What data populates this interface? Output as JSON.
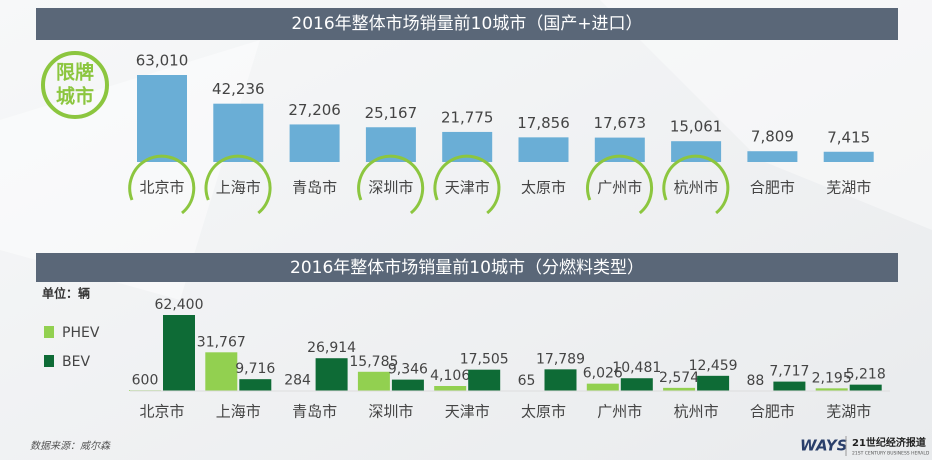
{
  "chart_data": [
    {
      "type": "bar",
      "title": "2016年整体市场销量前10城市（国产+进口）",
      "annotation": [
        "限牌",
        "城市"
      ],
      "categories": [
        "北京市",
        "上海市",
        "青岛市",
        "深圳市",
        "天津市",
        "太原市",
        "广州市",
        "杭州市",
        "合肥市",
        "芜湖市"
      ],
      "values": [
        63010,
        42236,
        27206,
        25167,
        21775,
        17856,
        17673,
        15061,
        7809,
        7415
      ],
      "value_labels": [
        "63,010",
        "42,236",
        "27,206",
        "25,167",
        "21,775",
        "17,856",
        "17,673",
        "15,061",
        "7,809",
        "7,415"
      ],
      "color": "#6aaed6",
      "highlighted": [
        true,
        true,
        false,
        true,
        true,
        false,
        true,
        true,
        false,
        false
      ],
      "highlight_color": "#8cc63f"
    },
    {
      "type": "grouped_bar",
      "title": "2016年整体市场销量前10城市（分燃料类型）",
      "unit_label": "单位：辆",
      "categories": [
        "北京市",
        "上海市",
        "青岛市",
        "深圳市",
        "天津市",
        "太原市",
        "广州市",
        "杭州市",
        "合肥市",
        "芜湖市"
      ],
      "series": [
        {
          "name": "PHEV",
          "color": "#92d050",
          "values": [
            600,
            31767,
            284,
            15785,
            4106,
            65,
            6026,
            2574,
            88,
            2195
          ],
          "value_labels": [
            "600",
            "31,767",
            "284",
            "15,785",
            "4,106",
            "65",
            "6,026",
            "2,574",
            "88",
            "2,195"
          ]
        },
        {
          "name": "BEV",
          "color": "#0e6b36",
          "values": [
            62400,
            9716,
            26914,
            9346,
            17505,
            17789,
            10481,
            12459,
            7717,
            5218
          ],
          "value_labels": [
            "62,400",
            "9,716",
            "26,914",
            "9,346",
            "17,505",
            "17,789",
            "10,481",
            "12,459",
            "7,717",
            "5,218"
          ]
        }
      ],
      "legend": "left"
    }
  ],
  "source": "数据来源：威尔森",
  "logos": [
    "WAYS",
    "21世纪经济报道",
    "21ST CENTURY BUSINESS HERALD"
  ]
}
